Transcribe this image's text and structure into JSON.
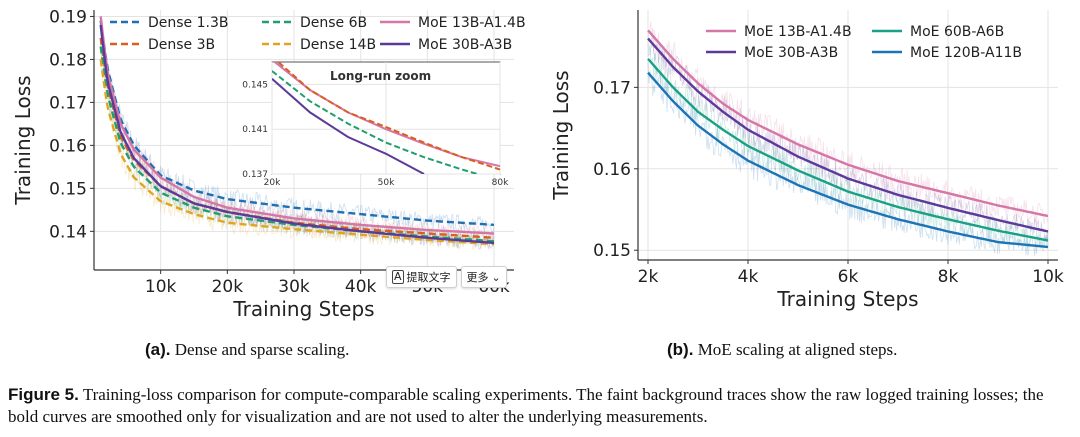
{
  "colors": {
    "dense_1_3b": "#1f6fb2",
    "dense_3b": "#d95f1c",
    "dense_6b": "#1f9e6e",
    "dense_14b": "#e0a51f",
    "moe_13b": "#d476a6",
    "moe_30b": "#5b3a99",
    "moe_60b": "#1aa084",
    "moe_120b": "#1c74b4",
    "grid": "#e3e3e3",
    "axis": "#333333"
  },
  "chart_data": [
    {
      "id": "a",
      "type": "line",
      "xlabel": "Training Steps",
      "ylabel": "Training Loss",
      "xlim": [
        0,
        63000
      ],
      "ylim": [
        0.131,
        0.1915
      ],
      "xticks": [
        10000,
        20000,
        30000,
        40000,
        50000,
        60000
      ],
      "xtick_labels": [
        "10k",
        "20k",
        "30k",
        "40k",
        "50k",
        "60k"
      ],
      "yticks": [
        0.14,
        0.15,
        0.16,
        0.17,
        0.18,
        0.19
      ],
      "ytick_labels": [
        "0.14",
        "0.15",
        "0.16",
        "0.17",
        "0.18",
        "0.19"
      ],
      "grid": true,
      "legend_placement": "top",
      "series": [
        {
          "name": "Dense 1.3B",
          "color_key": "dense_1_3b",
          "dash": true,
          "x": [
            1000,
            2000,
            4000,
            6000,
            10000,
            15000,
            20000,
            30000,
            40000,
            50000,
            60000
          ],
          "y": [
            0.189,
            0.178,
            0.166,
            0.16,
            0.153,
            0.1495,
            0.1475,
            0.1455,
            0.144,
            0.1425,
            0.1415
          ]
        },
        {
          "name": "Dense 3B",
          "color_key": "dense_3b",
          "dash": true,
          "x": [
            1000,
            2000,
            4000,
            6000,
            10000,
            15000,
            20000,
            30000,
            40000,
            50000,
            60000
          ],
          "y": [
            0.185,
            0.174,
            0.162,
            0.1565,
            0.1505,
            0.1465,
            0.1445,
            0.142,
            0.1405,
            0.1395,
            0.1385
          ]
        },
        {
          "name": "Dense 6B",
          "color_key": "dense_6b",
          "dash": true,
          "x": [
            1000,
            2000,
            4000,
            6000,
            10000,
            15000,
            20000,
            30000,
            40000,
            50000,
            60000
          ],
          "y": [
            0.183,
            0.172,
            0.1605,
            0.155,
            0.149,
            0.1455,
            0.1435,
            0.1415,
            0.14,
            0.1388,
            0.1377
          ]
        },
        {
          "name": "Dense 14B",
          "color_key": "dense_14b",
          "dash": true,
          "x": [
            1000,
            2000,
            4000,
            6000,
            10000,
            15000,
            20000,
            30000,
            40000,
            50000,
            60000
          ],
          "y": [
            0.18,
            0.169,
            0.158,
            0.1525,
            0.147,
            0.144,
            0.142,
            0.1405,
            0.1392,
            0.138,
            0.137
          ]
        },
        {
          "name": "MoE 13B-A1.4B",
          "color_key": "moe_13b",
          "dash": false,
          "x": [
            1000,
            2000,
            4000,
            6000,
            10000,
            15000,
            20000,
            30000,
            40000,
            50000,
            60000
          ],
          "y": [
            0.19,
            0.177,
            0.165,
            0.159,
            0.1525,
            0.148,
            0.1455,
            0.143,
            0.1415,
            0.1403,
            0.1395
          ]
        },
        {
          "name": "MoE 30B-A3B",
          "color_key": "moe_30b",
          "dash": false,
          "x": [
            1000,
            2000,
            4000,
            6000,
            10000,
            15000,
            20000,
            30000,
            40000,
            50000,
            60000
          ],
          "y": [
            0.188,
            0.175,
            0.163,
            0.157,
            0.1505,
            0.1465,
            0.1445,
            0.1418,
            0.14,
            0.1385,
            0.1373
          ]
        }
      ],
      "inset": {
        "title": "Long-run zoom",
        "xlim": [
          20000,
          80000
        ],
        "ylim": [
          0.137,
          0.147
        ],
        "xticks": [
          20000,
          50000,
          80000
        ],
        "xtick_labels": [
          "20k",
          "50k",
          "80k"
        ],
        "yticks": [
          0.137,
          0.141,
          0.145
        ],
        "ytick_labels": [
          "0.137",
          "0.141",
          "0.145"
        ],
        "series": [
          {
            "name": "MoE 13B-A1.4B",
            "color_key": "moe_13b",
            "dash": false,
            "x": [
              20000,
              30000,
              40000,
              50000,
              60000,
              70000,
              80000
            ],
            "y": [
              0.1472,
              0.1445,
              0.1425,
              0.141,
              0.1397,
              0.1385,
              0.1377
            ]
          },
          {
            "name": "Dense 3B",
            "color_key": "dense_3b",
            "dash": true,
            "x": [
              20000,
              30000,
              40000,
              50000,
              60000,
              70000,
              80000
            ],
            "y": [
              0.1475,
              0.1445,
              0.1425,
              0.1412,
              0.1398,
              0.1385,
              0.1374
            ]
          },
          {
            "name": "Dense 6B",
            "color_key": "dense_6b",
            "dash": true,
            "x": [
              20000,
              30000,
              40000,
              50000,
              60000,
              70000,
              74000
            ],
            "y": [
              0.1462,
              0.1435,
              0.1415,
              0.1398,
              0.1385,
              0.1374,
              0.137
            ]
          },
          {
            "name": "MoE 30B-A3B",
            "color_key": "moe_30b",
            "dash": false,
            "x": [
              20000,
              30000,
              40000,
              50000,
              55000,
              60000
            ],
            "y": [
              0.1455,
              0.1425,
              0.1403,
              0.1388,
              0.1379,
              0.137
            ]
          }
        ]
      }
    },
    {
      "id": "b",
      "type": "line",
      "xlabel": "Training Steps",
      "ylabel": "Training Loss",
      "xlim": [
        1800,
        10200
      ],
      "ylim": [
        0.1488,
        0.1795
      ],
      "xticks": [
        2000,
        4000,
        6000,
        8000,
        10000
      ],
      "xtick_labels": [
        "2k",
        "4k",
        "6k",
        "8k",
        "10k"
      ],
      "yticks": [
        0.15,
        0.16,
        0.17
      ],
      "ytick_labels": [
        "0.15",
        "0.16",
        "0.17"
      ],
      "grid": true,
      "legend_placement": "top",
      "series": [
        {
          "name": "MoE 13B-A1.4B",
          "color_key": "moe_13b",
          "x": [
            2000,
            2500,
            3000,
            3500,
            4000,
            5000,
            6000,
            7000,
            8000,
            9000,
            10000
          ],
          "y": [
            0.177,
            0.1735,
            0.1705,
            0.168,
            0.166,
            0.163,
            0.1605,
            0.1585,
            0.157,
            0.1555,
            0.1542
          ]
        },
        {
          "name": "MoE 30B-A3B",
          "color_key": "moe_30b",
          "x": [
            2000,
            2500,
            3000,
            3500,
            4000,
            5000,
            6000,
            7000,
            8000,
            9000,
            10000
          ],
          "y": [
            0.176,
            0.1725,
            0.1695,
            0.167,
            0.1648,
            0.1615,
            0.1588,
            0.1568,
            0.1552,
            0.1537,
            0.1523
          ]
        },
        {
          "name": "MoE 60B-A6B",
          "color_key": "moe_60b",
          "x": [
            2000,
            2500,
            3000,
            3500,
            4000,
            5000,
            6000,
            7000,
            8000,
            9000,
            10000
          ],
          "y": [
            0.1735,
            0.17,
            0.167,
            0.1648,
            0.1628,
            0.1598,
            0.1572,
            0.1553,
            0.1538,
            0.1524,
            0.1512
          ]
        },
        {
          "name": "MoE 120B-A11B",
          "color_key": "moe_120b",
          "x": [
            2000,
            2500,
            3000,
            3500,
            4000,
            5000,
            6000,
            7000,
            8000,
            9000,
            10000
          ],
          "y": [
            0.1718,
            0.1683,
            0.1653,
            0.163,
            0.161,
            0.158,
            0.1556,
            0.1538,
            0.1523,
            0.151,
            0.1504
          ]
        }
      ]
    }
  ],
  "captions": {
    "a_label": "(a).",
    "a_text": "Dense and sparse scaling.",
    "b_label": "(b).",
    "b_text": "MoE scaling at aligned steps.",
    "figure_label": "Figure 5.",
    "figure_text": "Training-loss comparison for compute-comparable scaling experiments. The faint background traces show the raw logged training losses; the bold curves are smoothed only for visualization and are not used to alter the underlying measurements."
  },
  "overlay": {
    "extract_text": "提取文字",
    "more": "更多",
    "extract_icon": "text-extract-icon",
    "more_icon": "chevron-down-icon"
  }
}
